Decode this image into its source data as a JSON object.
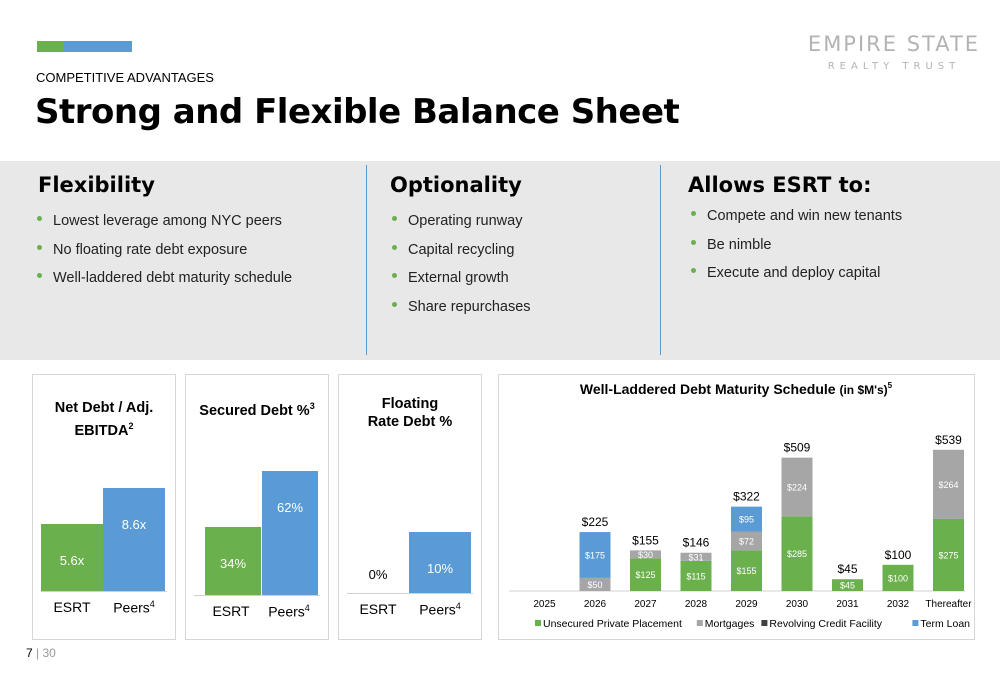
{
  "header": {
    "eyebrow": "COMPETITIVE ADVANTAGES",
    "title": "Strong and Flexible Balance Sheet",
    "logo_line1": "EMPIRE STATE",
    "logo_line2": "REALTY TRUST"
  },
  "columns": [
    {
      "heading": "Flexibility",
      "bullets": [
        "Lowest leverage among NYC peers",
        "No floating rate debt exposure",
        "Well-laddered debt maturity schedule"
      ]
    },
    {
      "heading": "Optionality",
      "bullets": [
        "Operating runway",
        "Capital recycling",
        "External growth",
        "Share repurchases"
      ]
    },
    {
      "heading": "Allows ESRT to:",
      "bullets": [
        "Compete and win new tenants",
        "Be nimble",
        "Execute and deploy capital"
      ]
    }
  ],
  "chart_data": [
    {
      "type": "bar",
      "title": "Net Debt / Adj. EBITDA",
      "title_line1": "Net Debt / Adj.",
      "title_line2": "EBITDA",
      "title_footnote": "2",
      "categories": [
        "ESRT",
        "Peers"
      ],
      "category_footnotes": [
        "",
        "4"
      ],
      "values": [
        5.6,
        8.6
      ],
      "labels": [
        "5.6x",
        "8.6x"
      ],
      "colors": [
        "#6ab04c",
        "#5b9bd5"
      ]
    },
    {
      "type": "bar",
      "title": "Secured Debt %",
      "title_footnote": "3",
      "categories": [
        "ESRT",
        "Peers"
      ],
      "category_footnotes": [
        "",
        "4"
      ],
      "values": [
        34,
        62
      ],
      "labels": [
        "34%",
        "62%"
      ],
      "colors": [
        "#6ab04c",
        "#5b9bd5"
      ]
    },
    {
      "type": "bar",
      "title": "Floating Rate Debt %",
      "title_line1": "Floating",
      "title_line2": "Rate Debt %",
      "categories": [
        "ESRT",
        "Peers"
      ],
      "category_footnotes": [
        "",
        "4"
      ],
      "values": [
        0,
        10
      ],
      "labels": [
        "0%",
        "10%"
      ],
      "colors": [
        "#6ab04c",
        "#5b9bd5"
      ]
    },
    {
      "type": "bar",
      "stacked": true,
      "title": "Well-Laddered Debt Maturity Schedule",
      "title_suffix": "(in $M's)",
      "title_footnote": "5",
      "categories": [
        "2025",
        "2026",
        "2027",
        "2028",
        "2029",
        "2030",
        "2031",
        "2032",
        "Thereafter"
      ],
      "totals": [
        0,
        225,
        155,
        146,
        322,
        509,
        45,
        100,
        539
      ],
      "total_labels": [
        "",
        "$225",
        "$155",
        "$146",
        "$322",
        "$509",
        "$45",
        "$100",
        "$539"
      ],
      "series": [
        {
          "name": "Unsecured Private Placement",
          "color": "#6ab04c",
          "values": [
            0,
            0,
            125,
            115,
            155,
            285,
            45,
            100,
            275
          ],
          "labels": [
            "",
            "",
            "$125",
            "$115",
            "$155",
            "$285",
            "$45",
            "$100",
            "$275"
          ]
        },
        {
          "name": "Mortgages",
          "color": "#a6a6a6",
          "values": [
            0,
            50,
            30,
            31,
            72,
            224,
            0,
            0,
            264
          ],
          "labels": [
            "",
            "$50",
            "$30",
            "$31",
            "$72",
            "$224",
            "",
            "",
            "$264"
          ]
        },
        {
          "name": "Revolving Credit Facility",
          "color": "#404040",
          "values": [
            0,
            0,
            0,
            0,
            0,
            0,
            0,
            0,
            0
          ],
          "labels": [
            "",
            "",
            "",
            "",
            "",
            "",
            "",
            "",
            ""
          ]
        },
        {
          "name": "Term Loan",
          "color": "#5b9bd5",
          "values": [
            0,
            175,
            0,
            0,
            95,
            0,
            0,
            0,
            0
          ],
          "labels": [
            "",
            "$175",
            "",
            "",
            "$95",
            "",
            "",
            "",
            ""
          ]
        }
      ],
      "legend_position": "bottom"
    }
  ],
  "footer": {
    "page": "7",
    "separator": "|",
    "total": "30"
  }
}
